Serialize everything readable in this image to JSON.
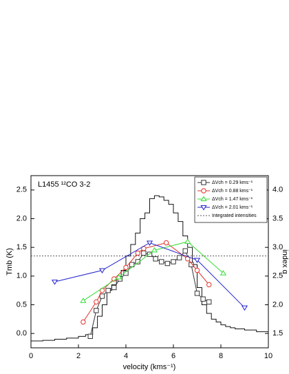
{
  "chart_data": {
    "type": "line",
    "annotation": "L1455 ¹²CO 3-2",
    "xlabel": "velocity (kms⁻¹)",
    "ylabel": "Tmb (K)",
    "y2label": "index α",
    "xlim": [
      0,
      10
    ],
    "xticks": [
      0,
      2,
      4,
      6,
      8,
      10
    ],
    "ylim": [
      -0.25,
      2.75
    ],
    "yticks": [
      {
        "value": 0,
        "label": "0.0"
      },
      0.5,
      {
        "value": 1,
        "label": "1.0"
      },
      1.5,
      {
        "value": 2,
        "label": "2.0"
      },
      2.5
    ],
    "y2lim": [
      1.25,
      4.25
    ],
    "y2ticks": [
      1.5,
      {
        "value": 2,
        "label": "2.0"
      },
      2.5,
      {
        "value": 3,
        "label": "3.0"
      },
      3.5,
      {
        "value": 4,
        "label": "4.0"
      }
    ],
    "spectrum": {
      "color": "#111111",
      "x": [
        0,
        0.5,
        1,
        1.5,
        2,
        2.3,
        2.6,
        2.8,
        3.0,
        3.2,
        3.4,
        3.6,
        3.8,
        4.0,
        4.2,
        4.4,
        4.6,
        4.8,
        5.0,
        5.2,
        5.4,
        5.6,
        5.8,
        6.0,
        6.2,
        6.4,
        6.6,
        6.8,
        7.0,
        7.2,
        7.4,
        7.6,
        7.8,
        8.0,
        8.2,
        8.4,
        8.6,
        9.0,
        9.5
      ],
      "values": [
        -0.13,
        -0.12,
        -0.1,
        -0.08,
        -0.05,
        -0.02,
        0.1,
        0.3,
        0.5,
        0.75,
        0.85,
        0.95,
        1.1,
        1.35,
        1.55,
        1.75,
        2.0,
        2.1,
        2.35,
        2.4,
        2.38,
        2.32,
        2.25,
        2.1,
        1.95,
        1.7,
        1.5,
        1.2,
        0.8,
        0.5,
        0.35,
        0.25,
        0.2,
        0.15,
        0.12,
        0.1,
        0.08,
        0.06,
        0.03
      ]
    },
    "series": [
      {
        "name": "ΔVch = 0.29 kms⁻¹",
        "color": "#333333",
        "marker": "square",
        "x": [
          2.5,
          2.75,
          3.0,
          3.25,
          3.5,
          3.75,
          4.0,
          4.25,
          4.5,
          4.75,
          5.0,
          5.25,
          5.5,
          5.75,
          6.0,
          6.25,
          6.5,
          6.75,
          7.0,
          7.25,
          7.5
        ],
        "values": [
          -0.05,
          0.4,
          0.65,
          0.75,
          0.8,
          0.95,
          1.05,
          1.2,
          1.25,
          1.4,
          1.38,
          1.3,
          1.25,
          1.22,
          1.25,
          1.32,
          1.44,
          1.2,
          0.7,
          0.6,
          0.55
        ]
      },
      {
        "name": "ΔVch = 0.88 kms⁻¹",
        "color": "#e0302a",
        "marker": "circle",
        "x": [
          2.2,
          2.75,
          3.0,
          3.5,
          4.0,
          4.5,
          4.75,
          5.7,
          6.6,
          7.0,
          7.5
        ],
        "values": [
          0.2,
          0.55,
          0.75,
          0.95,
          1.15,
          1.4,
          1.48,
          1.58,
          1.3,
          1.1,
          0.85
        ]
      },
      {
        "name": "ΔVch = 1.47 kms⁻¹",
        "color": "#33dd33",
        "marker": "triangle",
        "x": [
          2.2,
          3.7,
          5.2,
          6.6,
          8.1
        ],
        "values": [
          0.57,
          0.98,
          1.45,
          1.6,
          1.05
        ]
      },
      {
        "name": "ΔVch = 2.01 kms⁻¹",
        "color": "#2222cc",
        "marker": "triangle-down",
        "x": [
          1.0,
          3.0,
          5.0,
          7.0,
          9.0
        ],
        "values": [
          0.9,
          1.1,
          1.58,
          1.28,
          0.45
        ]
      }
    ],
    "reference_line": {
      "name": "Integrated intensities",
      "value": 1.35,
      "color": "#555555"
    }
  }
}
